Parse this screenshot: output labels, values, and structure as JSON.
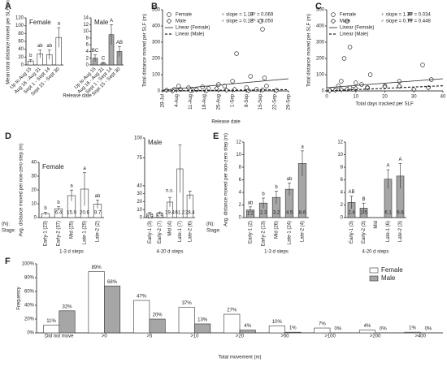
{
  "chart_data": [
    {
      "type": "bar",
      "panel": "A",
      "subtitle": "Female",
      "ylabel": "Mean total distance moved per SLF (m)",
      "xlabel": "Release date",
      "categories": [
        "Up to Aug 15",
        "Aug 16 - Aug 31",
        "Sept 1 - Sept 14",
        "Sept 15 - Sept 30"
      ],
      "values": [
        10,
        28,
        26,
        70
      ],
      "errors": [
        4,
        10,
        12,
        25
      ],
      "letters": [
        "b",
        "ab",
        "ab",
        "a"
      ],
      "color": "#ffffff",
      "ylim": [
        0,
        120
      ],
      "yticks": [
        0,
        20,
        40,
        60,
        80,
        100,
        120
      ]
    },
    {
      "type": "bar",
      "subtitle": "Male",
      "categories": [
        "Up to Aug 15",
        "Aug 16 - Aug 31",
        "Sept 1 - Sept 14",
        "Sept 15 - Sept 30"
      ],
      "values": [
        2,
        0.5,
        9,
        4
      ],
      "errors": [
        1,
        0.3,
        3,
        1.5
      ],
      "letters": [
        "BC",
        "C",
        "A",
        "AB"
      ],
      "color": "#a6a6a6",
      "ylim": [
        0,
        14
      ],
      "yticks": [
        0,
        2,
        4,
        6,
        8,
        10,
        12,
        14
      ]
    },
    {
      "type": "scatter",
      "panel": "B",
      "ylabel": "Total distance moved per SLF (m)",
      "xlabel": "Release date",
      "xlim": [
        "28-Jul",
        "29-Sep"
      ],
      "xticks": [
        "28-Jul",
        "4-Aug",
        "11-Aug",
        "18-Aug",
        "25-Aug",
        "1-Sep",
        "8-Sep",
        "15-Sep",
        "22-Sep",
        "29-Sep"
      ],
      "ylim": [
        0,
        500
      ],
      "yticks": [
        0,
        100,
        200,
        300,
        400,
        500
      ],
      "series": [
        {
          "name": "Female",
          "marker": "circle",
          "x": [
            "3-Aug",
            "5-Aug",
            "10-Aug",
            "12-Aug",
            "17-Aug",
            "20-Aug",
            "25-Aug",
            "28-Aug",
            "1-Sep",
            "3-Sep",
            "8-Sep",
            "10-Sep",
            "13-Sep",
            "15-Sep",
            "16-Sep",
            "17-Sep",
            "18-Sep"
          ],
          "values": [
            10,
            30,
            20,
            5,
            25,
            15,
            40,
            30,
            60,
            230,
            20,
            90,
            10,
            430,
            380,
            80,
            30
          ]
        },
        {
          "name": "Male",
          "marker": "diamond",
          "x": [
            "30-Jul",
            "2-Aug",
            "6-Aug",
            "11-Aug",
            "14-Aug",
            "19-Aug",
            "24-Aug",
            "29-Aug",
            "2-Sep",
            "9-Sep",
            "16-Sep",
            "23-Sep"
          ],
          "values": [
            5,
            0,
            10,
            3,
            8,
            2,
            15,
            5,
            10,
            3,
            6,
            4
          ]
        },
        {
          "name": "Linear (Female)",
          "type": "line",
          "dash": false,
          "x": [
            "28-Jul",
            "29-Sep"
          ],
          "values": [
            5,
            75
          ]
        },
        {
          "name": "Linear (Male)",
          "type": "line",
          "dash": true,
          "x": [
            "28-Jul",
            "29-Sep"
          ],
          "values": [
            0,
            8
          ]
        }
      ],
      "annotations": [
        "♀ slope = 1.13",
        "R² = 0.069",
        "♂ slope = 0.12",
        "R² = 0.050"
      ]
    },
    {
      "type": "scatter",
      "panel": "C",
      "ylabel": "Total distance moved per SLF (m)",
      "xlabel": "Total days tracked per SLF",
      "xlim": [
        0,
        40
      ],
      "xticks": [
        0,
        10,
        20,
        30,
        40
      ],
      "ylim": [
        0,
        500
      ],
      "yticks": [
        0,
        100,
        200,
        300,
        400,
        500
      ],
      "series": [
        {
          "name": "Female",
          "marker": "circle",
          "x": [
            2,
            4,
            5,
            6,
            7,
            8,
            8,
            10,
            12,
            15,
            20,
            25,
            33,
            36,
            14,
            9
          ],
          "values": [
            10,
            30,
            60,
            200,
            430,
            270,
            20,
            50,
            40,
            100,
            30,
            60,
            160,
            70,
            20,
            10
          ]
        },
        {
          "name": "Male",
          "marker": "diamond",
          "x": [
            1,
            3,
            5,
            7,
            10,
            14,
            20,
            25,
            30,
            35
          ],
          "values": [
            2,
            5,
            8,
            10,
            15,
            20,
            25,
            30,
            10,
            20
          ]
        },
        {
          "name": "Linear (Female)",
          "type": "line",
          "dash": false,
          "x": [
            0,
            40
          ],
          "values": [
            20,
            75
          ]
        },
        {
          "name": "Linear (Male)",
          "type": "line",
          "dash": true,
          "x": [
            0,
            40
          ],
          "values": [
            0,
            32
          ]
        }
      ],
      "annotations": [
        "♀ slope = 1.39",
        "R² = 0.034",
        "♂ slope = 0.79",
        "R² = 0.448"
      ]
    },
    {
      "type": "bar",
      "panel": "D",
      "subtitle": "Female",
      "ylabel": "Avg. distance moved per non-zero step (m)",
      "xlabel": "1-3 d steps",
      "row_labels": [
        "(N):",
        "Stage:"
      ],
      "categories": [
        "Early-1 (23)",
        "Early-2 (37)",
        "Mid (25)",
        "Late-1 (29)",
        "Late-2 (2)"
      ],
      "values": [
        2.9,
        6.4,
        15.9,
        20.6,
        9.7
      ],
      "value_labels": [
        null,
        "6.4",
        "15.9",
        "20.6",
        "9.7"
      ],
      "errors": [
        1,
        1.5,
        4,
        12,
        3
      ],
      "letters": [
        "b",
        "b",
        "a",
        "a",
        "ab"
      ],
      "color": "#ffffff",
      "ylim": [
        0,
        40
      ],
      "yticks": [
        0,
        10,
        20,
        30,
        40
      ]
    },
    {
      "type": "bar",
      "subtitle": "Male",
      "xlabel": "4-20 d steps",
      "note": "n.s.",
      "categories": [
        "Early-1 (3)",
        "Early-2 (7)",
        "Mid (4)",
        "Late-1 (7)",
        "Late-2 (6)"
      ],
      "values": [
        4.5,
        5.5,
        19.4,
        61.2,
        28.4
      ],
      "errors": [
        2,
        1.5,
        6,
        30,
        5
      ],
      "color": "#ffffff",
      "ylim": [
        0,
        100
      ],
      "yticks": [
        0,
        10,
        20,
        30,
        40,
        75,
        100
      ]
    },
    {
      "type": "bar",
      "panel": "E",
      "ylabel": "Avg. distance moved per non-zero step (m)",
      "xlabel": "1-3 d steps",
      "row_labels": [
        "(N):",
        "Stage:"
      ],
      "categories": [
        "Early-1 (2)",
        "Early-2 (13)",
        "Mid (26)",
        "Late-1 (24)",
        "Late-2 (4)"
      ],
      "values": [
        1.2,
        2.3,
        3.2,
        4.5,
        8.6
      ],
      "errors": [
        0.5,
        0.8,
        1,
        1,
        2
      ],
      "letters": [
        "ab",
        "b",
        "b",
        "ab",
        "a"
      ],
      "color": "#a6a6a6",
      "ylim": [
        0,
        12
      ],
      "yticks": [
        0,
        2,
        4,
        6,
        8,
        10,
        12
      ]
    },
    {
      "type": "bar",
      "xlabel": "4-20 d steps",
      "categories": [
        "Early-1 (3)",
        "Early-2 (3)",
        "Mid",
        "Late-1 (6)",
        "Late-2 (3)"
      ],
      "values": [
        2.4,
        1.5,
        null,
        6.1,
        6.6
      ],
      "errors": [
        1,
        0.8,
        null,
        1.5,
        2
      ],
      "letters": [
        "AB",
        "B",
        null,
        "A",
        "A"
      ],
      "color": "#a6a6a6",
      "ylim": [
        0,
        12
      ],
      "yticks": [
        0,
        2,
        4,
        6,
        8,
        10,
        12
      ]
    },
    {
      "type": "grouped_bar",
      "panel": "F",
      "ylabel": "Frequency",
      "xlabel": "Total movement (m)",
      "categories": [
        "Did not move",
        ">0",
        ">5",
        ">10",
        ">20",
        ">50",
        ">100",
        ">200",
        ">400"
      ],
      "ylim": [
        0,
        100
      ],
      "yticks": [
        {
          "value": 0,
          "label": "0%"
        },
        {
          "value": 20,
          "label": "20%"
        },
        {
          "value": 40,
          "label": "40%"
        },
        {
          "value": 60,
          "label": "60%"
        },
        {
          "value": 80,
          "label": "80%"
        },
        {
          "value": 100,
          "label": "100%"
        }
      ],
      "series": [
        {
          "name": "Female",
          "color": "#ffffff",
          "values": [
            11,
            89,
            47,
            37,
            27,
            10,
            7,
            4,
            1
          ],
          "value_labels": [
            "11%",
            "89%",
            "47%",
            "37%",
            "27%",
            "10%",
            "7%",
            "4%",
            "1%"
          ]
        },
        {
          "name": "Male",
          "color": "#a6a6a6",
          "values": [
            32,
            68,
            20,
            13,
            4,
            1,
            0,
            0,
            0
          ],
          "value_labels": [
            "32%",
            "68%",
            "20%",
            "13%",
            "4%",
            "1%",
            "0%",
            "0%",
            "0%"
          ]
        }
      ]
    }
  ]
}
